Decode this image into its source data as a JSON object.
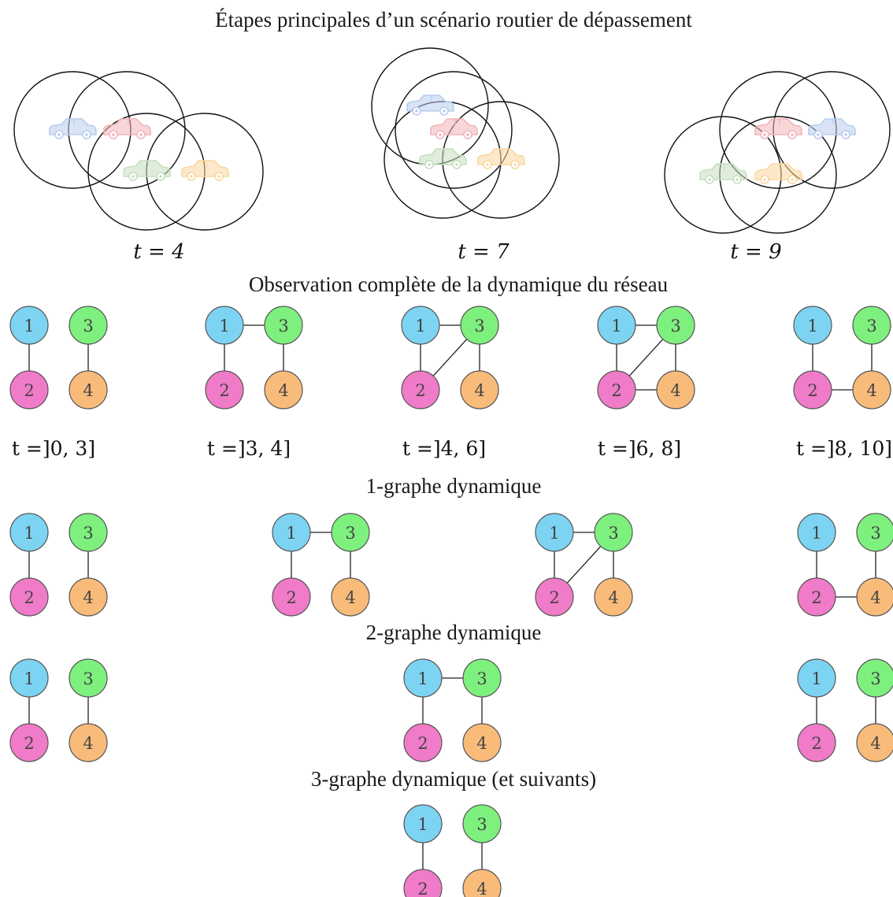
{
  "titles": {
    "scenario": "Étapes principales d’un scénario routier de dépassement",
    "observation": "Observation complète de la dynamique du réseau",
    "one_graph": "1-graphe dynamique",
    "two_graph": "2-graphe dynamique",
    "three_graph": "3-graphe dynamique (et suivants)"
  },
  "scenario_times": [
    "t = 4",
    "t = 7",
    "t = 9"
  ],
  "intervals": [
    "t =]0, 3]",
    "t =]3, 4]",
    "t =]4, 6]",
    "t =]6, 8]",
    "t =]8, 10]"
  ],
  "node_labels": [
    "1",
    "2",
    "3",
    "4"
  ],
  "colors": {
    "node1": "#7dd3f2",
    "node2": "#f07bc8",
    "node3": "#7ef07e",
    "node4": "#f8bb7a",
    "car_blue": "#b8cdee",
    "car_red": "#f2b4b8",
    "car_green": "#c7dfc0",
    "car_orange": "#f9d7a0"
  },
  "graphs": {
    "observation": [
      [
        [
          1,
          2
        ],
        [
          3,
          4
        ]
      ],
      [
        [
          1,
          2
        ],
        [
          3,
          4
        ],
        [
          1,
          3
        ]
      ],
      [
        [
          1,
          2
        ],
        [
          3,
          4
        ],
        [
          1,
          3
        ],
        [
          2,
          3
        ]
      ],
      [
        [
          1,
          2
        ],
        [
          3,
          4
        ],
        [
          1,
          3
        ],
        [
          2,
          3
        ],
        [
          2,
          4
        ]
      ],
      [
        [
          1,
          2
        ],
        [
          3,
          4
        ],
        [
          2,
          4
        ]
      ]
    ],
    "one_graph": [
      [
        [
          1,
          2
        ],
        [
          3,
          4
        ]
      ],
      [
        [
          1,
          2
        ],
        [
          3,
          4
        ],
        [
          1,
          3
        ]
      ],
      [
        [
          1,
          2
        ],
        [
          3,
          4
        ],
        [
          1,
          3
        ],
        [
          2,
          3
        ]
      ],
      [
        [
          1,
          2
        ],
        [
          3,
          4
        ],
        [
          2,
          4
        ]
      ]
    ],
    "two_graph": [
      [
        [
          1,
          2
        ],
        [
          3,
          4
        ]
      ],
      [
        [
          1,
          2
        ],
        [
          3,
          4
        ],
        [
          1,
          3
        ]
      ],
      [
        [
          1,
          2
        ],
        [
          3,
          4
        ]
      ]
    ],
    "three_graph": [
      [
        [
          1,
          2
        ],
        [
          3,
          4
        ]
      ]
    ]
  }
}
